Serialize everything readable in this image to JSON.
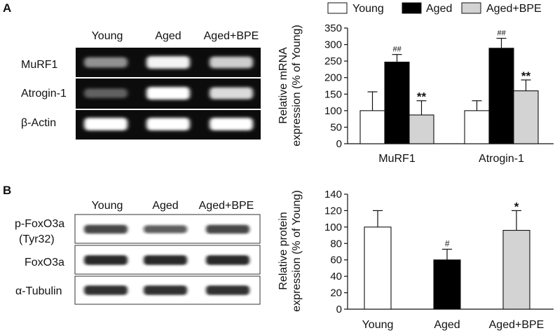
{
  "panels": {
    "A": {
      "label": "A",
      "blot": {
        "lanes": [
          "Young",
          "Aged",
          "Aged+BPE"
        ],
        "rows": [
          "MuRF1",
          "Atrogin-1",
          "β-Actin"
        ],
        "intensity": [
          [
            0.55,
            0.95,
            0.8
          ],
          [
            0.35,
            1.0,
            0.85
          ],
          [
            1.0,
            1.0,
            1.0
          ]
        ]
      },
      "legend": [
        {
          "name": "Young",
          "color": "#ffffff"
        },
        {
          "name": "Aged",
          "color": "#000000"
        },
        {
          "name": "Aged+BPE",
          "color": "#d3d3d3"
        }
      ]
    },
    "B": {
      "label": "B",
      "blot": {
        "lanes": [
          "Young",
          "Aged",
          "Aged+BPE"
        ],
        "rows": [
          "p-FoxO3a",
          "(Tyr32)",
          "FoxO3a",
          "α-Tubulin"
        ],
        "intensity": [
          [
            0.75,
            0.55,
            0.75
          ],
          [
            0.95,
            0.95,
            0.95
          ],
          [
            0.9,
            0.9,
            0.9
          ]
        ]
      }
    }
  },
  "chart_data": [
    {
      "type": "bar",
      "categories": [
        "MuRF1",
        "Atrogin-1"
      ],
      "series": [
        {
          "name": "Young",
          "color": "#ffffff",
          "values": [
            100,
            100
          ],
          "errors": [
            57,
            30
          ],
          "marks": [
            "",
            ""
          ]
        },
        {
          "name": "Aged",
          "color": "#000000",
          "values": [
            247,
            289
          ],
          "errors": [
            23,
            30
          ],
          "marks": [
            "##",
            "##"
          ]
        },
        {
          "name": "Aged+BPE",
          "color": "#d3d3d3",
          "values": [
            87,
            160
          ],
          "errors": [
            43,
            33
          ],
          "marks": [
            "**",
            "**"
          ]
        }
      ],
      "ylabel_line1": "Relative mRNA",
      "ylabel_line2": "expression (% of Young)",
      "ylim": [
        0,
        350
      ],
      "yticks": [
        "0",
        "50",
        "100",
        "150",
        "200",
        "250",
        "300",
        "350"
      ],
      "grid": false
    },
    {
      "type": "bar",
      "categories": [
        "Young",
        "Aged",
        "Aged+BPE"
      ],
      "series": [
        {
          "name": "",
          "colors": [
            "#ffffff",
            "#000000",
            "#d3d3d3"
          ],
          "values": [
            100,
            60,
            96
          ],
          "errors": [
            20,
            13,
            24
          ],
          "marks": [
            "",
            "#",
            "*"
          ]
        }
      ],
      "ylabel_line1": "Relative protein",
      "ylabel_line2": "expression (% of Young)",
      "ylim": [
        0,
        140
      ],
      "yticks": [
        "0",
        "20",
        "40",
        "60",
        "80",
        "100",
        "120",
        "140"
      ],
      "grid": false
    }
  ]
}
